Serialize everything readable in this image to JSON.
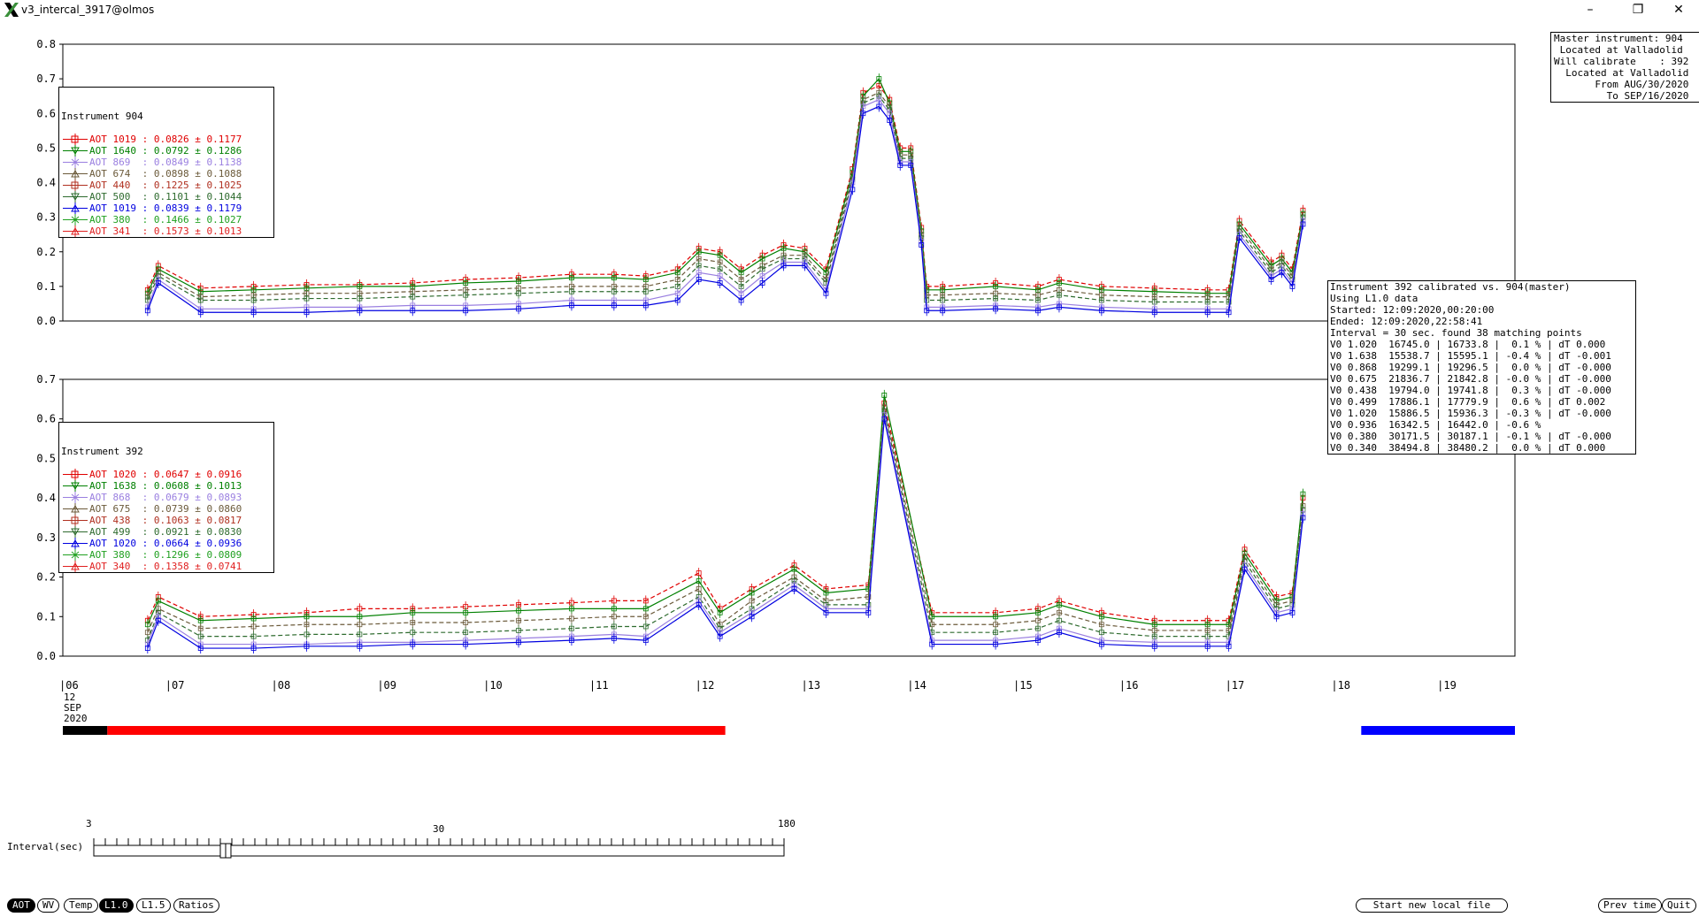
{
  "window": {
    "title": "v3_intercal_3917@olmos",
    "min_label": "–",
    "max_label": "❐",
    "close_label": "✕"
  },
  "master_info": [
    "Master instrument: 904",
    " Located at Valladolid",
    "Will calibrate    : 392",
    "  Located at Valladolid",
    "       From AUG/30/2020",
    "         To SEP/16/2020"
  ],
  "calib_info": [
    "Instrument 392 calibrated vs. 904(master)",
    "Using L1.0 data",
    "Started: 12:09:2020,00:20:00",
    "Ended: 12:09:2020,22:58:41",
    "Interval = 30 sec. found 38 matching points",
    "V0 1.020  16745.0 | 16733.8 |  0.1 % | dT 0.000",
    "V0 1.638  15538.7 | 15595.1 | -0.4 % | dT -0.001",
    "V0 0.868  19299.1 | 19296.5 |  0.0 % | dT -0.000",
    "V0 0.675  21836.7 | 21842.8 | -0.0 % | dT -0.000",
    "V0 0.438  19794.0 | 19741.8 |  0.3 % | dT -0.000",
    "V0 0.499  17886.1 | 17779.9 |  0.6 % | dT 0.002",
    "V0 1.020  15886.5 | 15936.3 | -0.3 % | dT -0.000",
    "V0 0.936  16342.5 | 16442.0 | -0.6 %",
    "V0 0.380  30171.5 | 30187.1 | -0.1 % | dT -0.000",
    "V0 0.340  38494.8 | 38480.2 |  0.0 % | dT 0.000"
  ],
  "legend_904": {
    "title": "Instrument 904",
    "items": [
      {
        "label": "AOT 1019 :",
        "value": "0.0826 ± 0.1177",
        "color": "#e00000",
        "marker": "square"
      },
      {
        "label": "AOT 1640 :",
        "value": "0.0792 ± 0.1286",
        "color": "#008000",
        "marker": "triangle-down"
      },
      {
        "label": "AOT 869  :",
        "value": "0.0849 ± 0.1138",
        "color": "#9a7fe0",
        "marker": "cross"
      },
      {
        "label": "AOT 674  :",
        "value": "0.0898 ± 0.1088",
        "color": "#6b5a3a",
        "marker": "triangle-up"
      },
      {
        "label": "AOT 440  :",
        "value": "0.1225 ± 0.1025",
        "color": "#b03020",
        "marker": "square"
      },
      {
        "label": "AOT 500  :",
        "value": "0.1101 ± 0.1044",
        "color": "#2e6b2e",
        "marker": "triangle-down"
      },
      {
        "label": "AOT 1019 :",
        "value": "0.0839 ± 0.1179",
        "color": "#0000e0",
        "marker": "triangle-up"
      },
      {
        "label": "AOT 380  :",
        "value": "0.1466 ± 0.1027",
        "color": "#20a020",
        "marker": "cross"
      },
      {
        "label": "AOT 341  :",
        "value": "0.1573 ± 0.1013",
        "color": "#e02020",
        "marker": "triangle-up"
      }
    ]
  },
  "legend_392": {
    "title": "Instrument 392",
    "items": [
      {
        "label": "AOT 1020 :",
        "value": "0.0647 ± 0.0916",
        "color": "#e00000",
        "marker": "square"
      },
      {
        "label": "AOT 1638 :",
        "value": "0.0608 ± 0.1013",
        "color": "#008000",
        "marker": "triangle-down"
      },
      {
        "label": "AOT 868  :",
        "value": "0.0679 ± 0.0893",
        "color": "#9a7fe0",
        "marker": "cross"
      },
      {
        "label": "AOT 675  :",
        "value": "0.0739 ± 0.0860",
        "color": "#6b5a3a",
        "marker": "triangle-up"
      },
      {
        "label": "AOT 438  :",
        "value": "0.1063 ± 0.0817",
        "color": "#b03020",
        "marker": "square"
      },
      {
        "label": "AOT 499  :",
        "value": "0.0921 ± 0.0830",
        "color": "#2e6b2e",
        "marker": "triangle-down"
      },
      {
        "label": "AOT 1020 :",
        "value": "0.0664 ± 0.0936",
        "color": "#0000e0",
        "marker": "triangle-up"
      },
      {
        "label": "AOT 380  :",
        "value": "0.1296 ± 0.0809",
        "color": "#20a020",
        "marker": "cross"
      },
      {
        "label": "AOT 340  :",
        "value": "0.1358 ± 0.0741",
        "color": "#e02020",
        "marker": "triangle-up"
      }
    ]
  },
  "x_axis": {
    "ticks": [
      "|06",
      "|07",
      "|08",
      "|09",
      "|10",
      "|11",
      "|12",
      "|13",
      "|14",
      "|15",
      "|16",
      "|17",
      "|18",
      "|19"
    ],
    "date_lines": [
      "12",
      "SEP",
      "2020"
    ]
  },
  "slider": {
    "label": "Interval(sec)",
    "min": "3",
    "mid": "30",
    "max": "180",
    "value": 30
  },
  "buttons": {
    "aot": "AOT",
    "wv": "WV",
    "temp": "Temp",
    "l10": "L1.0",
    "l15": "L1.5",
    "ratios": "Ratios",
    "start_new": "Start new local file",
    "prev_time": "Prev time",
    "quit": "Quit"
  },
  "chart_data": [
    {
      "type": "line",
      "instrument": "Instrument 904",
      "ylim": [
        0,
        0.8
      ],
      "yticks": [
        "0.0",
        "0.1",
        "0.2",
        "0.3",
        "0.4",
        "0.5",
        "0.6",
        "0.7",
        "0.8"
      ],
      "xlim": [
        6,
        19.7
      ],
      "x": [
        6.8,
        6.9,
        7.3,
        7.8,
        8.3,
        8.8,
        9.3,
        9.8,
        10.3,
        10.8,
        11.2,
        11.5,
        11.8,
        12.0,
        12.2,
        12.4,
        12.6,
        12.8,
        13.0,
        13.2,
        13.45,
        13.55,
        13.7,
        13.8,
        13.9,
        14.0,
        14.1,
        14.15,
        14.3,
        14.8,
        15.2,
        15.4,
        15.8,
        16.3,
        16.8,
        17.0,
        17.1,
        17.4,
        17.5,
        17.6,
        17.7
      ],
      "series": [
        {
          "name": "AOT 1019",
          "color": "#e00000",
          "dashed": true,
          "values": [
            0.09,
            0.16,
            0.095,
            0.1,
            0.105,
            0.105,
            0.11,
            0.12,
            0.125,
            0.135,
            0.135,
            0.13,
            0.15,
            0.21,
            0.2,
            0.15,
            0.19,
            0.22,
            0.21,
            0.15,
            0.44,
            0.66,
            0.68,
            0.64,
            0.5,
            0.5,
            0.27,
            0.1,
            0.1,
            0.11,
            0.1,
            0.12,
            0.1,
            0.095,
            0.09,
            0.09,
            0.29,
            0.17,
            0.19,
            0.15,
            0.32
          ]
        },
        {
          "name": "AOT 1640",
          "color": "#008000",
          "dashed": false,
          "values": [
            0.08,
            0.15,
            0.085,
            0.09,
            0.095,
            0.1,
            0.1,
            0.11,
            0.115,
            0.125,
            0.125,
            0.12,
            0.14,
            0.2,
            0.19,
            0.14,
            0.18,
            0.21,
            0.2,
            0.14,
            0.43,
            0.65,
            0.7,
            0.63,
            0.49,
            0.49,
            0.26,
            0.09,
            0.09,
            0.1,
            0.09,
            0.11,
            0.09,
            0.085,
            0.08,
            0.08,
            0.28,
            0.16,
            0.18,
            0.14,
            0.31
          ]
        },
        {
          "name": "AOT 674",
          "color": "#6b5a3a",
          "dashed": true,
          "values": [
            0.07,
            0.14,
            0.07,
            0.075,
            0.08,
            0.08,
            0.085,
            0.09,
            0.095,
            0.1,
            0.1,
            0.1,
            0.12,
            0.18,
            0.17,
            0.12,
            0.16,
            0.19,
            0.19,
            0.12,
            0.42,
            0.64,
            0.66,
            0.62,
            0.48,
            0.48,
            0.25,
            0.075,
            0.075,
            0.08,
            0.075,
            0.09,
            0.075,
            0.07,
            0.07,
            0.07,
            0.27,
            0.15,
            0.17,
            0.13,
            0.3
          ]
        },
        {
          "name": "AOT 500",
          "color": "#2e6b2e",
          "dashed": true,
          "values": [
            0.06,
            0.13,
            0.06,
            0.06,
            0.065,
            0.065,
            0.07,
            0.075,
            0.08,
            0.085,
            0.085,
            0.085,
            0.1,
            0.16,
            0.15,
            0.1,
            0.15,
            0.18,
            0.18,
            0.11,
            0.41,
            0.63,
            0.65,
            0.61,
            0.47,
            0.47,
            0.24,
            0.06,
            0.06,
            0.065,
            0.06,
            0.075,
            0.06,
            0.055,
            0.055,
            0.055,
            0.26,
            0.14,
            0.16,
            0.12,
            0.3
          ]
        },
        {
          "name": "AOT 869",
          "color": "#9a7fe0",
          "dashed": false,
          "values": [
            0.04,
            0.12,
            0.035,
            0.035,
            0.04,
            0.04,
            0.045,
            0.045,
            0.05,
            0.06,
            0.06,
            0.06,
            0.08,
            0.14,
            0.13,
            0.08,
            0.13,
            0.17,
            0.17,
            0.09,
            0.4,
            0.62,
            0.64,
            0.6,
            0.46,
            0.46,
            0.23,
            0.04,
            0.04,
            0.045,
            0.04,
            0.05,
            0.04,
            0.035,
            0.035,
            0.035,
            0.25,
            0.13,
            0.15,
            0.11,
            0.29
          ]
        },
        {
          "name": "AOT 1019",
          "color": "#0000e0",
          "dashed": false,
          "values": [
            0.03,
            0.11,
            0.025,
            0.025,
            0.025,
            0.03,
            0.03,
            0.03,
            0.035,
            0.045,
            0.045,
            0.045,
            0.06,
            0.12,
            0.11,
            0.06,
            0.11,
            0.16,
            0.16,
            0.08,
            0.38,
            0.6,
            0.62,
            0.58,
            0.45,
            0.45,
            0.22,
            0.03,
            0.03,
            0.035,
            0.03,
            0.04,
            0.03,
            0.025,
            0.025,
            0.025,
            0.24,
            0.12,
            0.14,
            0.1,
            0.28
          ]
        }
      ]
    },
    {
      "type": "line",
      "instrument": "Instrument 392",
      "ylim": [
        0,
        0.7
      ],
      "yticks": [
        "0.0",
        "0.1",
        "0.2",
        "0.3",
        "0.4",
        "0.5",
        "0.6",
        "0.7"
      ],
      "xlim": [
        6,
        19.7
      ],
      "x": [
        6.8,
        6.9,
        7.3,
        7.8,
        8.3,
        8.8,
        9.3,
        9.8,
        10.3,
        10.8,
        11.2,
        11.5,
        12.0,
        12.2,
        12.5,
        12.9,
        13.2,
        13.6,
        13.75,
        14.2,
        14.8,
        15.2,
        15.4,
        15.8,
        16.3,
        16.8,
        17.0,
        17.15,
        17.45,
        17.6,
        17.7
      ],
      "series": [
        {
          "name": "AOT 1020",
          "color": "#e00000",
          "dashed": true,
          "values": [
            0.09,
            0.15,
            0.1,
            0.105,
            0.11,
            0.12,
            0.12,
            0.125,
            0.13,
            0.135,
            0.14,
            0.14,
            0.21,
            0.12,
            0.17,
            0.23,
            0.17,
            0.18,
            0.64,
            0.11,
            0.11,
            0.12,
            0.14,
            0.11,
            0.09,
            0.09,
            0.09,
            0.27,
            0.15,
            0.16,
            0.4
          ]
        },
        {
          "name": "AOT 1638",
          "color": "#008000",
          "dashed": false,
          "values": [
            0.08,
            0.14,
            0.09,
            0.095,
            0.1,
            0.1,
            0.11,
            0.11,
            0.115,
            0.12,
            0.12,
            0.12,
            0.19,
            0.11,
            0.16,
            0.22,
            0.16,
            0.17,
            0.66,
            0.1,
            0.1,
            0.11,
            0.13,
            0.1,
            0.08,
            0.08,
            0.08,
            0.26,
            0.14,
            0.15,
            0.41
          ]
        },
        {
          "name": "AOT 675",
          "color": "#6b5a3a",
          "dashed": true,
          "values": [
            0.06,
            0.12,
            0.07,
            0.075,
            0.08,
            0.08,
            0.085,
            0.085,
            0.09,
            0.095,
            0.1,
            0.1,
            0.17,
            0.08,
            0.14,
            0.2,
            0.14,
            0.15,
            0.63,
            0.08,
            0.08,
            0.09,
            0.11,
            0.08,
            0.065,
            0.065,
            0.065,
            0.25,
            0.13,
            0.14,
            0.38
          ]
        },
        {
          "name": "AOT 499",
          "color": "#2e6b2e",
          "dashed": true,
          "values": [
            0.04,
            0.11,
            0.05,
            0.05,
            0.055,
            0.055,
            0.06,
            0.06,
            0.065,
            0.07,
            0.075,
            0.075,
            0.15,
            0.07,
            0.12,
            0.19,
            0.13,
            0.13,
            0.62,
            0.06,
            0.06,
            0.07,
            0.09,
            0.06,
            0.05,
            0.05,
            0.05,
            0.24,
            0.12,
            0.13,
            0.37
          ]
        },
        {
          "name": "AOT 868",
          "color": "#9a7fe0",
          "dashed": false,
          "values": [
            0.03,
            0.1,
            0.03,
            0.03,
            0.03,
            0.035,
            0.035,
            0.04,
            0.045,
            0.05,
            0.055,
            0.05,
            0.14,
            0.06,
            0.11,
            0.18,
            0.12,
            0.12,
            0.61,
            0.04,
            0.04,
            0.05,
            0.07,
            0.04,
            0.035,
            0.035,
            0.035,
            0.23,
            0.11,
            0.12,
            0.36
          ]
        },
        {
          "name": "AOT 1020",
          "color": "#0000e0",
          "dashed": false,
          "values": [
            0.02,
            0.09,
            0.02,
            0.02,
            0.025,
            0.025,
            0.03,
            0.03,
            0.035,
            0.04,
            0.045,
            0.04,
            0.13,
            0.05,
            0.1,
            0.17,
            0.11,
            0.11,
            0.6,
            0.03,
            0.03,
            0.04,
            0.06,
            0.03,
            0.025,
            0.025,
            0.025,
            0.22,
            0.1,
            0.11,
            0.35
          ]
        }
      ]
    }
  ],
  "time_bars": [
    {
      "name": "black",
      "color": "#000000",
      "from": 6.0,
      "to": 6.42
    },
    {
      "name": "red",
      "color": "#ff0000",
      "from": 6.42,
      "to": 12.25
    },
    {
      "name": "blue",
      "color": "#0000ff",
      "from": 18.25,
      "to": 19.7
    }
  ]
}
